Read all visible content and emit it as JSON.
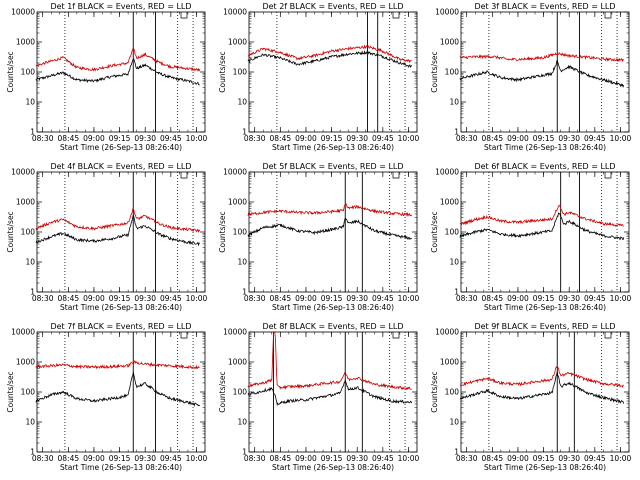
{
  "colors": {
    "events": "#000000",
    "lld": "#cc0000",
    "axis": "#000000"
  },
  "common": {
    "ylabel": "Counts/sec",
    "xlabel": "Start Time (26-Sep-13 08:26:40)",
    "y_ticks": [
      "1",
      "10",
      "100",
      "1000",
      "10000"
    ],
    "x_ticks": [
      "08:30",
      "08:45",
      "09:00",
      "09:15",
      "09:30",
      "09:45",
      "10:00"
    ],
    "y_scale": "log",
    "ylim": [
      1,
      10000
    ]
  },
  "chart_data": [
    {
      "type": "line",
      "title": "Det 1f BLACK = Events, RED = LLD",
      "xlim": [
        "08:26:40",
        "10:05"
      ],
      "solid_lines": [
        "09:23",
        "09:36"
      ],
      "dotted_lines": [
        "08:43",
        "09:49",
        "09:58"
      ],
      "series": [
        {
          "name": "Events",
          "color": "black",
          "x": [
            "08:26",
            "08:35",
            "08:42",
            "08:50",
            "09:00",
            "09:10",
            "09:20",
            "09:23",
            "09:25",
            "09:30",
            "09:38",
            "09:45",
            "09:55",
            "10:02"
          ],
          "values": [
            55,
            75,
            95,
            55,
            50,
            70,
            85,
            300,
            130,
            170,
            90,
            65,
            50,
            40
          ]
        },
        {
          "name": "LLD",
          "color": "red",
          "x": [
            "08:26",
            "08:35",
            "08:42",
            "08:50",
            "09:00",
            "09:10",
            "09:20",
            "09:23",
            "09:25",
            "09:30",
            "09:38",
            "09:45",
            "09:55",
            "10:02"
          ],
          "values": [
            160,
            230,
            300,
            140,
            120,
            160,
            200,
            620,
            290,
            380,
            210,
            150,
            130,
            115
          ]
        }
      ]
    },
    {
      "type": "line",
      "title": "Det 2f BLACK = Events, RED = LLD",
      "xlim": [
        "08:26:40",
        "10:05"
      ],
      "solid_lines": [
        "09:36",
        "09:42"
      ],
      "dotted_lines": [
        "08:43",
        "09:49",
        "09:58"
      ],
      "series": [
        {
          "name": "Events",
          "color": "black",
          "x": [
            "08:26",
            "08:35",
            "08:45",
            "08:55",
            "09:05",
            "09:15",
            "09:25",
            "09:36",
            "09:45",
            "09:55",
            "10:02"
          ],
          "values": [
            230,
            380,
            290,
            180,
            230,
            320,
            400,
            450,
            330,
            200,
            150
          ]
        },
        {
          "name": "LLD",
          "color": "red",
          "x": [
            "08:26",
            "08:35",
            "08:45",
            "08:55",
            "09:05",
            "09:15",
            "09:25",
            "09:36",
            "09:45",
            "09:55",
            "10:02"
          ],
          "values": [
            350,
            600,
            450,
            280,
            350,
            500,
            600,
            700,
            500,
            260,
            230
          ]
        }
      ]
    },
    {
      "type": "line",
      "title": "Det 3f BLACK = Events, RED = LLD",
      "xlim": [
        "08:26:40",
        "10:05"
      ],
      "solid_lines": [
        "09:23",
        "09:36"
      ],
      "dotted_lines": [
        "08:43",
        "09:49",
        "09:58"
      ],
      "series": [
        {
          "name": "Events",
          "color": "black",
          "x": [
            "08:26",
            "08:35",
            "08:42",
            "08:50",
            "09:00",
            "09:10",
            "09:20",
            "09:23",
            "09:25",
            "09:30",
            "09:40",
            "09:50",
            "10:02"
          ],
          "values": [
            60,
            80,
            100,
            65,
            55,
            70,
            90,
            230,
            110,
            150,
            80,
            55,
            35
          ]
        },
        {
          "name": "LLD",
          "color": "red",
          "x": [
            "08:26",
            "08:35",
            "08:45",
            "08:55",
            "09:05",
            "09:15",
            "09:23",
            "09:30",
            "09:40",
            "09:50",
            "10:02"
          ],
          "values": [
            300,
            320,
            330,
            260,
            270,
            300,
            420,
            350,
            310,
            270,
            250
          ]
        }
      ]
    },
    {
      "type": "line",
      "title": "Det 4f BLACK = Events, RED = LLD",
      "xlim": [
        "08:26:40",
        "10:05"
      ],
      "solid_lines": [
        "09:23",
        "09:36"
      ],
      "dotted_lines": [
        "08:43",
        "09:49",
        "09:58"
      ],
      "series": [
        {
          "name": "Events",
          "color": "black",
          "x": [
            "08:26",
            "08:35",
            "08:42",
            "08:50",
            "09:00",
            "09:10",
            "09:20",
            "09:23",
            "09:25",
            "09:30",
            "09:38",
            "09:45",
            "09:55",
            "10:02"
          ],
          "values": [
            45,
            70,
            90,
            55,
            50,
            60,
            80,
            350,
            130,
            160,
            85,
            60,
            45,
            40
          ]
        },
        {
          "name": "LLD",
          "color": "red",
          "x": [
            "08:26",
            "08:35",
            "08:42",
            "08:50",
            "09:00",
            "09:10",
            "09:20",
            "09:23",
            "09:25",
            "09:30",
            "09:38",
            "09:45",
            "09:55",
            "10:02"
          ],
          "values": [
            130,
            210,
            260,
            150,
            130,
            160,
            200,
            600,
            270,
            340,
            190,
            140,
            120,
            110
          ]
        }
      ]
    },
    {
      "type": "line",
      "title": "Det 5f BLACK = Events, RED = LLD",
      "xlim": [
        "08:26:40",
        "10:05"
      ],
      "solid_lines": [
        "09:23",
        "09:33"
      ],
      "dotted_lines": [
        "08:43",
        "09:49",
        "09:58"
      ],
      "series": [
        {
          "name": "Events",
          "color": "black",
          "x": [
            "08:26",
            "08:35",
            "08:45",
            "08:55",
            "09:05",
            "09:15",
            "09:22",
            "09:23",
            "09:25",
            "09:30",
            "09:40",
            "09:50",
            "10:02"
          ],
          "values": [
            75,
            140,
            170,
            110,
            95,
            120,
            150,
            320,
            190,
            230,
            110,
            80,
            60
          ]
        },
        {
          "name": "LLD",
          "color": "red",
          "x": [
            "08:26",
            "08:35",
            "08:45",
            "08:55",
            "09:05",
            "09:15",
            "09:22",
            "09:23",
            "09:25",
            "09:30",
            "09:40",
            "09:50",
            "10:02"
          ],
          "values": [
            380,
            450,
            500,
            450,
            430,
            480,
            520,
            900,
            620,
            700,
            500,
            420,
            370
          ]
        }
      ]
    },
    {
      "type": "line",
      "title": "Det 6f BLACK = Events, RED = LLD",
      "xlim": [
        "08:26:40",
        "10:05"
      ],
      "solid_lines": [
        "09:25",
        "09:36"
      ],
      "dotted_lines": [
        "08:43",
        "09:49",
        "09:58"
      ],
      "series": [
        {
          "name": "Events",
          "color": "black",
          "x": [
            "08:26",
            "08:35",
            "08:42",
            "08:50",
            "09:00",
            "09:10",
            "09:20",
            "09:24",
            "09:27",
            "09:30",
            "09:40",
            "09:50",
            "10:02"
          ],
          "values": [
            70,
            100,
            120,
            85,
            75,
            90,
            110,
            450,
            180,
            230,
            110,
            75,
            60
          ]
        },
        {
          "name": "LLD",
          "color": "red",
          "x": [
            "08:26",
            "08:35",
            "08:42",
            "08:50",
            "09:00",
            "09:10",
            "09:20",
            "09:24",
            "09:27",
            "09:30",
            "09:40",
            "09:50",
            "10:02"
          ],
          "values": [
            180,
            260,
            320,
            230,
            210,
            240,
            270,
            800,
            380,
            450,
            270,
            190,
            160
          ]
        }
      ]
    },
    {
      "type": "line",
      "title": "Det 7f BLACK = Events, RED = LLD",
      "xlim": [
        "08:26:40",
        "10:05"
      ],
      "solid_lines": [
        "09:23",
        "09:36"
      ],
      "dotted_lines": [
        "08:43",
        "09:49",
        "09:58"
      ],
      "series": [
        {
          "name": "Events",
          "color": "black",
          "x": [
            "08:26",
            "08:35",
            "08:42",
            "08:50",
            "09:00",
            "09:10",
            "09:20",
            "09:23",
            "09:25",
            "09:30",
            "09:38",
            "09:45",
            "09:55",
            "10:02"
          ],
          "values": [
            50,
            80,
            100,
            60,
            50,
            60,
            75,
            450,
            150,
            190,
            90,
            60,
            45,
            35
          ]
        },
        {
          "name": "LLD",
          "color": "red",
          "x": [
            "08:26",
            "08:35",
            "08:42",
            "08:50",
            "09:00",
            "09:10",
            "09:20",
            "09:23",
            "09:30",
            "09:40",
            "09:50",
            "10:02"
          ],
          "values": [
            700,
            750,
            800,
            700,
            680,
            700,
            750,
            1000,
            850,
            780,
            720,
            650
          ]
        }
      ]
    },
    {
      "type": "line",
      "title": "Det 8f BLACK = Events, RED = LLD",
      "xlim": [
        "08:26:40",
        "10:05"
      ],
      "solid_lines": [
        "08:41",
        "09:23",
        "09:33"
      ],
      "dotted_lines": [
        "09:49",
        "09:58"
      ],
      "series": [
        {
          "name": "Events",
          "color": "black",
          "x": [
            "08:26",
            "08:35",
            "08:40",
            "08:42",
            "08:43",
            "08:50",
            "09:00",
            "09:10",
            "09:20",
            "09:23",
            "09:25",
            "09:30",
            "09:40",
            "09:50",
            "10:02"
          ],
          "values": [
            80,
            110,
            130,
            70,
            40,
            50,
            55,
            70,
            90,
            250,
            120,
            140,
            70,
            50,
            45
          ]
        },
        {
          "name": "LLD",
          "color": "red",
          "x": [
            "08:26",
            "08:35",
            "08:40",
            "08:41",
            "08:42",
            "08:43",
            "08:44",
            "08:50",
            "09:00",
            "09:10",
            "09:20",
            "09:23",
            "09:25",
            "09:30",
            "09:40",
            "09:50",
            "10:02"
          ],
          "values": [
            160,
            200,
            250,
            10000,
            10000,
            170,
            140,
            150,
            160,
            190,
            220,
            450,
            260,
            300,
            180,
            150,
            130
          ]
        }
      ]
    },
    {
      "type": "line",
      "title": "Det 9f BLACK = Events, RED = LLD",
      "xlim": [
        "08:26:40",
        "10:05"
      ],
      "solid_lines": [
        "09:23",
        "09:33"
      ],
      "dotted_lines": [
        "08:43",
        "09:49",
        "09:58"
      ],
      "series": [
        {
          "name": "Events",
          "color": "black",
          "x": [
            "08:26",
            "08:35",
            "08:42",
            "08:50",
            "09:00",
            "09:10",
            "09:20",
            "09:23",
            "09:25",
            "09:30",
            "09:40",
            "09:50",
            "10:02"
          ],
          "values": [
            60,
            85,
            110,
            70,
            60,
            75,
            95,
            450,
            150,
            200,
            95,
            65,
            45
          ]
        },
        {
          "name": "LLD",
          "color": "red",
          "x": [
            "08:26",
            "08:35",
            "08:42",
            "08:50",
            "09:00",
            "09:10",
            "09:20",
            "09:23",
            "09:25",
            "09:30",
            "09:40",
            "09:50",
            "10:02"
          ],
          "values": [
            170,
            230,
            280,
            200,
            180,
            220,
            260,
            800,
            350,
            420,
            260,
            190,
            160
          ]
        }
      ]
    }
  ]
}
